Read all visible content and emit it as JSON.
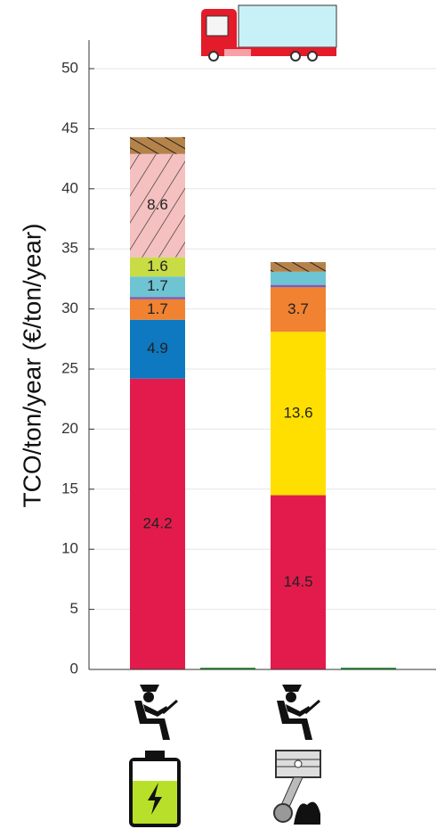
{
  "chart_data": {
    "type": "stacked_bar",
    "y_label": "TCO/ton/year (€/ton/year)",
    "categories": [
      null,
      null,
      null,
      null
    ],
    "ylim": [
      0,
      50
    ],
    "yticks": [
      0,
      5,
      10,
      15,
      20,
      25,
      30,
      35,
      40,
      45,
      50
    ],
    "grid": true,
    "series": [
      {
        "color": "#e31b4d",
        "values": [
          24.2,
          null,
          14.5,
          null
        ]
      },
      {
        "color": "#0e78c0",
        "values": [
          4.9,
          null,
          null,
          null
        ]
      },
      {
        "color": "#ffdf00",
        "values": [
          null,
          null,
          13.6,
          null
        ]
      },
      {
        "color": "#f08231",
        "values": [
          1.7,
          null,
          3.7,
          null
        ]
      },
      {
        "color": "#7e5cad",
        "values": [
          0.2,
          null,
          0.2,
          null
        ]
      },
      {
        "color": "#6ec4d2",
        "values": [
          1.7,
          null,
          1.1,
          null
        ]
      },
      {
        "color": "#c8dc45",
        "values": [
          1.6,
          null,
          null,
          null
        ]
      },
      {
        "color": "#f5c0c0",
        "hatch": "/",
        "values": [
          8.6,
          null,
          null,
          null
        ]
      },
      {
        "color": "#b5834a",
        "hatch": "\\",
        "values": [
          1.4,
          null,
          0.8,
          null
        ]
      },
      {
        "color": "#2a9a3a",
        "values": [
          null,
          0,
          null,
          0
        ]
      }
    ]
  }
}
